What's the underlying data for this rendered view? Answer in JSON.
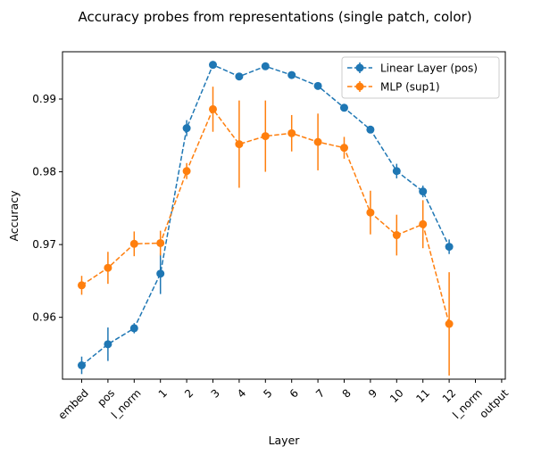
{
  "chart_data": {
    "type": "line",
    "title": "Accuracy probes from representations (single patch, color)",
    "xlabel": "Layer",
    "ylabel": "Accuracy",
    "categories": [
      "embed",
      "pos",
      "l_norm",
      "1",
      "2",
      "3",
      "4",
      "5",
      "6",
      "7",
      "8",
      "9",
      "10",
      "11",
      "12",
      "l_norm",
      "output"
    ],
    "ylim": [
      0.9515,
      0.9965
    ],
    "yticks": [
      "0.96",
      "0.97",
      "0.98",
      "0.99"
    ],
    "ytick_values": [
      0.96,
      0.97,
      0.98,
      0.99
    ],
    "grid": false,
    "legend_position": "top-right",
    "series": [
      {
        "name": "Linear Layer (pos)",
        "color": "#1f77b4",
        "values": [
          0.9534,
          0.9563,
          0.9585,
          0.966,
          0.986,
          0.9947,
          0.9931,
          0.9945,
          0.9933,
          0.9918,
          0.9888,
          0.9858,
          0.9801,
          0.9773,
          0.9697,
          null,
          null
        ],
        "errors": [
          0.0012,
          0.0023,
          0.0007,
          0.0028,
          0.0011,
          0.0003,
          0.0004,
          0.0003,
          0.0003,
          0.0003,
          0.0005,
          0.0005,
          0.001,
          0.0008,
          0.001,
          null,
          null
        ]
      },
      {
        "name": "MLP (sup1)",
        "color": "#ff7f0e",
        "values": [
          0.9644,
          0.9668,
          0.9701,
          0.9702,
          0.9801,
          0.9886,
          0.9838,
          0.9849,
          0.9853,
          0.9841,
          0.9833,
          0.9744,
          0.9713,
          0.9728,
          0.9591,
          null,
          null
        ],
        "errors": [
          0.0013,
          0.0022,
          0.0017,
          0.0017,
          0.0011,
          0.0031,
          0.006,
          0.0049,
          0.0025,
          0.0039,
          0.0015,
          0.003,
          0.0028,
          0.0033,
          0.0071,
          null,
          null
        ]
      }
    ]
  }
}
